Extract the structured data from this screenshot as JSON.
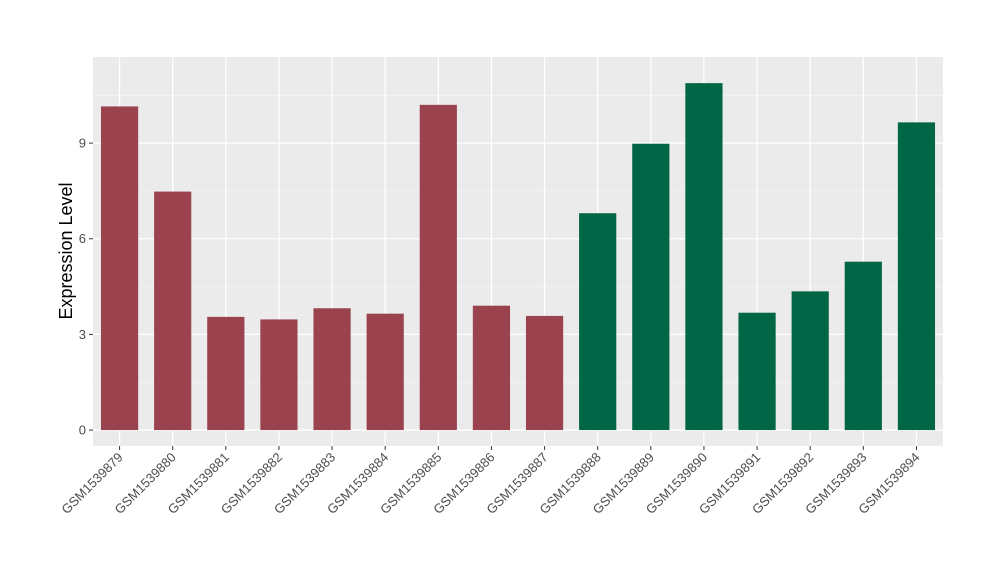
{
  "chart_data": {
    "type": "bar",
    "ylabel": "Expression Level",
    "xlabel": "",
    "ylim": [
      -0.5,
      11.7
    ],
    "yticks": [
      0,
      3,
      6,
      9
    ],
    "grid": true,
    "panel_background": "#ebebeb",
    "categories": [
      "GSM1539879",
      "GSM1539880",
      "GSM1539881",
      "GSM1539882",
      "GSM1539883",
      "GSM1539884",
      "GSM1539885",
      "GSM1539886",
      "GSM1539887",
      "GSM1539888",
      "GSM1539889",
      "GSM1539890",
      "GSM1539891",
      "GSM1539892",
      "GSM1539893",
      "GSM1539894"
    ],
    "values": [
      10.15,
      7.48,
      3.55,
      3.47,
      3.82,
      3.65,
      10.2,
      3.9,
      3.58,
      6.8,
      8.98,
      10.88,
      3.68,
      4.35,
      5.28,
      9.65
    ],
    "bar_colors": [
      "#9b424f",
      "#9b424f",
      "#9b424f",
      "#9b424f",
      "#9b424f",
      "#9b424f",
      "#9b424f",
      "#9b424f",
      "#9b424f",
      "#006646",
      "#006646",
      "#006646",
      "#006646",
      "#006646",
      "#006646",
      "#006646"
    ]
  }
}
